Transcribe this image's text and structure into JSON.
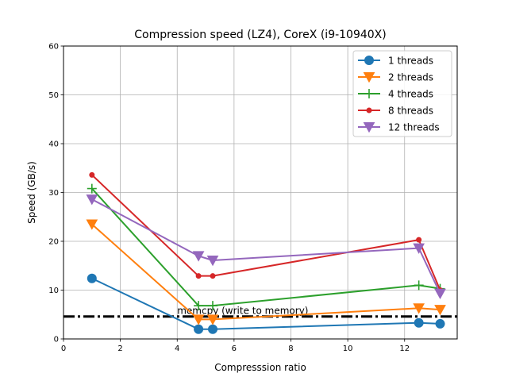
{
  "chart_data": {
    "type": "line",
    "title": "Compression speed (LZ4), CoreX (i9-10940X)",
    "xlabel": "Compresssion ratio",
    "ylabel": "Speed (GB/s)",
    "xlim": [
      0,
      13.85
    ],
    "ylim": [
      0,
      60
    ],
    "xticks": [
      0,
      2,
      4,
      6,
      8,
      10,
      12
    ],
    "yticks": [
      0,
      10,
      20,
      30,
      40,
      50,
      60
    ],
    "grid": true,
    "legend_position": "top-right",
    "series": [
      {
        "name": "1 threads",
        "color": "#1f77b4",
        "marker": "circle",
        "x": [
          1.0,
          4.75,
          5.25,
          12.5,
          13.25
        ],
        "y": [
          12.4,
          2.0,
          2.0,
          3.3,
          3.1
        ]
      },
      {
        "name": "2 threads",
        "color": "#ff7f0e",
        "marker": "triangle-down",
        "x": [
          1.0,
          4.75,
          5.25,
          12.5,
          13.25
        ],
        "y": [
          23.5,
          4.0,
          4.0,
          6.3,
          6.0
        ]
      },
      {
        "name": "4 threads",
        "color": "#2ca02c",
        "marker": "plus",
        "x": [
          1.0,
          4.75,
          5.25,
          12.5,
          13.25
        ],
        "y": [
          30.8,
          6.8,
          6.8,
          11.0,
          10.3
        ]
      },
      {
        "name": "8 threads",
        "color": "#d62728",
        "marker": "small-circle",
        "x": [
          1.0,
          4.75,
          5.25,
          12.5,
          13.25
        ],
        "y": [
          33.6,
          12.9,
          12.9,
          20.3,
          10.0
        ]
      },
      {
        "name": "12 threads",
        "color": "#9467bd",
        "marker": "triangle-down",
        "x": [
          1.0,
          4.75,
          5.25,
          12.5,
          13.25
        ],
        "y": [
          28.6,
          17.0,
          16.1,
          18.6,
          9.3
        ]
      }
    ],
    "reference_line": {
      "label": "memcpy (write to memory)",
      "y": 4.6,
      "color": "#000000",
      "style": "dash-dot"
    }
  }
}
